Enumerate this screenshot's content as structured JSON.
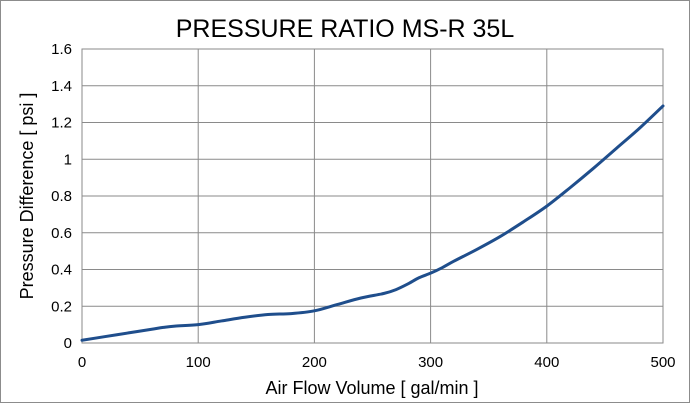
{
  "chart_data": {
    "type": "line",
    "title": "PRESSURE RATIO MS-R 35L",
    "xlabel": "Air Flow Volume [ gal/min ]",
    "ylabel": "Pressure Difference [ psi ]",
    "xlim": [
      0,
      500
    ],
    "ylim": [
      0,
      1.6
    ],
    "x_ticks": [
      0,
      100,
      200,
      300,
      400,
      500
    ],
    "x_tick_labels": [
      "0",
      "100",
      "200",
      "300",
      "400",
      "500"
    ],
    "y_ticks": [
      0,
      0.2,
      0.4,
      0.6,
      0.8,
      1.0,
      1.2,
      1.4,
      1.6
    ],
    "y_tick_labels": [
      "0",
      "0.2",
      "0.4",
      "0.6",
      "0.8",
      "1",
      "1.2",
      "1.4",
      "1.6"
    ],
    "grid": true,
    "legend": "none",
    "series": [
      {
        "color": "#1f4e8c",
        "x": [
          0,
          20,
          40,
          60,
          70,
          80,
          100,
          120,
          140,
          160,
          180,
          200,
          220,
          240,
          260,
          270,
          280,
          290,
          300,
          310,
          320,
          340,
          360,
          380,
          400,
          420,
          440,
          460,
          480,
          500
        ],
        "y": [
          0.015,
          0.035,
          0.055,
          0.075,
          0.085,
          0.092,
          0.1,
          0.12,
          0.14,
          0.155,
          0.16,
          0.175,
          0.21,
          0.245,
          0.27,
          0.29,
          0.32,
          0.355,
          0.38,
          0.41,
          0.445,
          0.51,
          0.58,
          0.66,
          0.745,
          0.845,
          0.95,
          1.06,
          1.17,
          1.29
        ]
      }
    ]
  }
}
